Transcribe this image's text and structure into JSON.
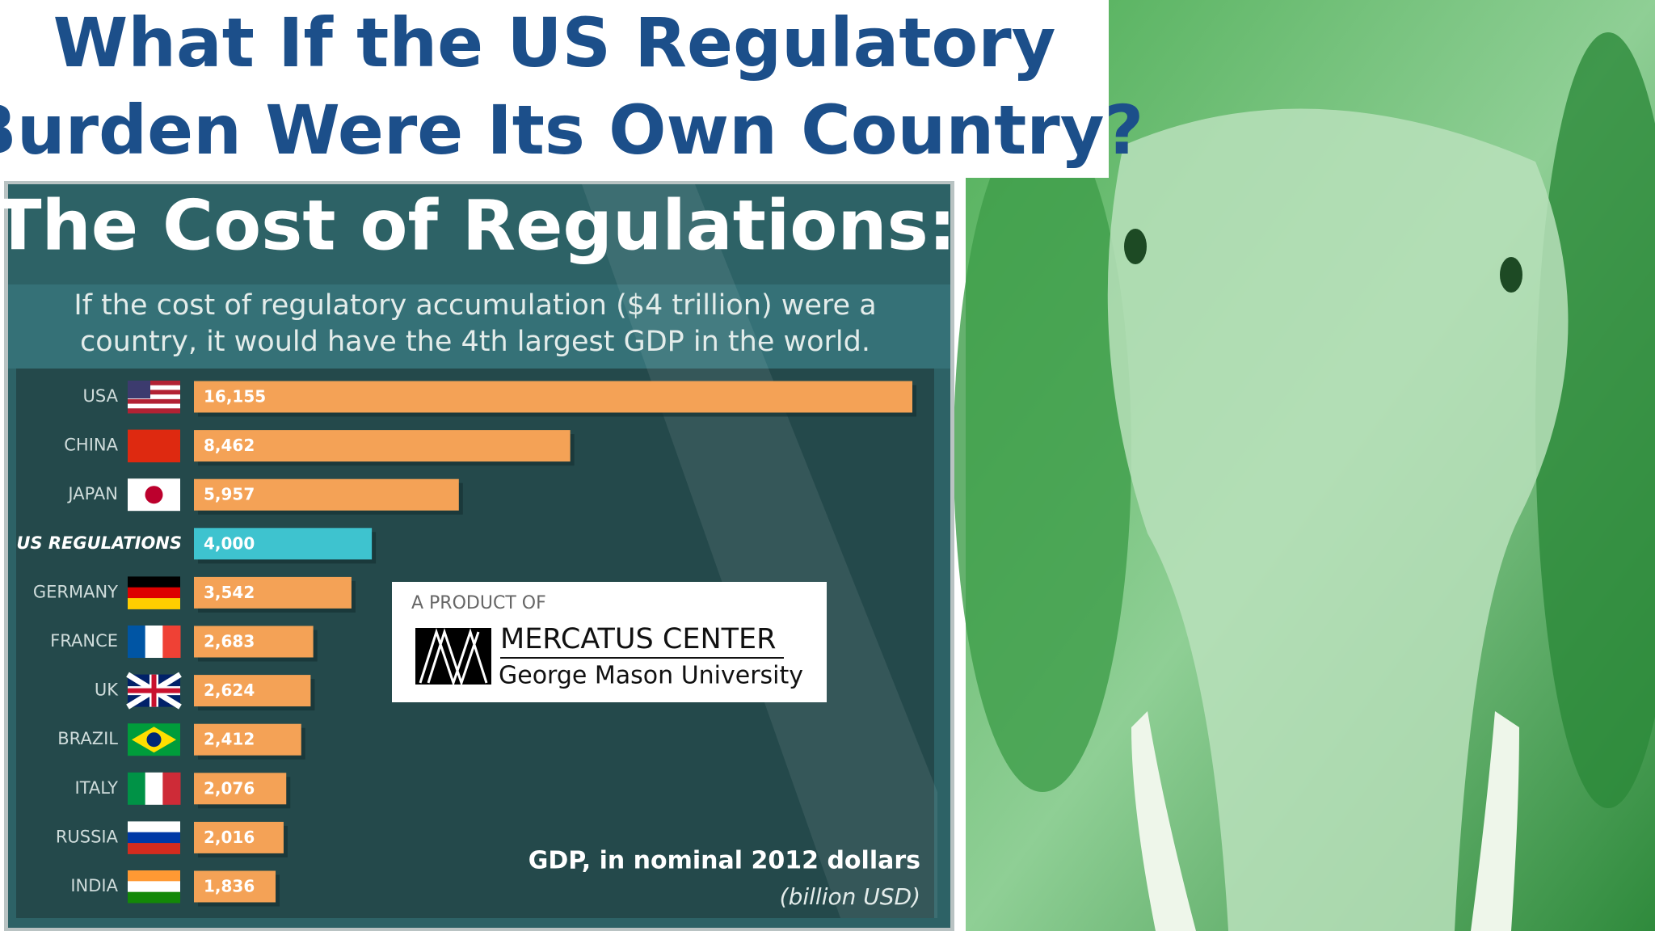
{
  "header": {
    "title": [
      "What If the US Regulatory",
      "Burden Were Its Own Country?"
    ]
  },
  "logo": {
    "intro": "A PRODUCT OF",
    "name": "MERCATUS CENTER",
    "university": "George Mason University"
  },
  "chart_data": {
    "type": "bar",
    "orientation": "horizontal",
    "title": "The Cost of Regulations:",
    "subtitle": [
      "If the cost of regulatory accumulation ($4 trillion) were a",
      "country, it would have the 4th largest GDP in the world."
    ],
    "categories": [
      "USA",
      "CHINA",
      "JAPAN",
      "US REGULATIONS",
      "GERMANY",
      "FRANCE",
      "UK",
      "BRAZIL",
      "ITALY",
      "RUSSIA",
      "INDIA"
    ],
    "values": [
      16155,
      8462,
      5957,
      4000,
      3542,
      2683,
      2624,
      2412,
      2076,
      2016,
      1836
    ],
    "value_labels": [
      "16,155",
      "8,462",
      "5,957",
      "4,000",
      "3,542",
      "2,683",
      "2,624",
      "2,412",
      "2,076",
      "2,016",
      "1,836"
    ],
    "colors": [
      "#f4a256",
      "#f4a256",
      "#f4a256",
      "#3ec3cf",
      "#f4a256",
      "#f4a256",
      "#f4a256",
      "#f4a256",
      "#f4a256",
      "#f4a256",
      "#f4a256"
    ],
    "value_axis_label": "GDP, in nominal 2012 dollars",
    "unit_label": "(billion USD)"
  }
}
